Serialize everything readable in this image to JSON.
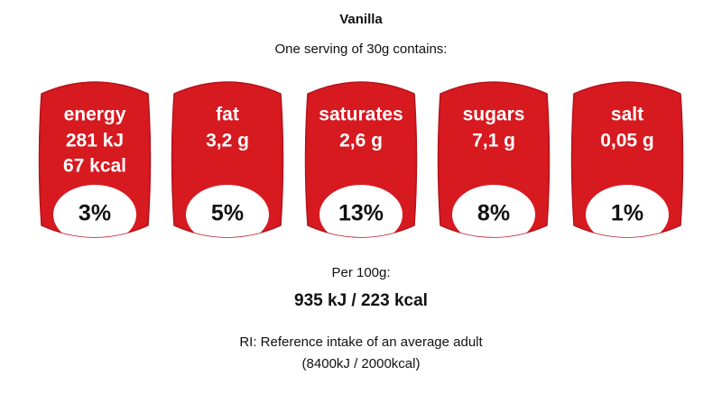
{
  "header": {
    "title": "Vanilla",
    "subtitle": "One serving of 30g contains:"
  },
  "items": [
    {
      "name": "energy",
      "amounts": [
        "281 kJ",
        "67 kcal"
      ],
      "ri": "3%"
    },
    {
      "name": "fat",
      "amounts": [
        "3,2 g"
      ],
      "ri": "5%"
    },
    {
      "name": "saturates",
      "amounts": [
        "2,6 g"
      ],
      "ri": "13%"
    },
    {
      "name": "sugars",
      "amounts": [
        "7,1 g"
      ],
      "ri": "8%"
    },
    {
      "name": "salt",
      "amounts": [
        "0,05 g"
      ],
      "ri": "1%"
    }
  ],
  "per100": {
    "label": "Per 100g:",
    "value": "935 kJ / 223 kcal"
  },
  "note": [
    "RI: Reference intake of an average adult",
    "(8400kJ / 2000kcal)"
  ]
}
